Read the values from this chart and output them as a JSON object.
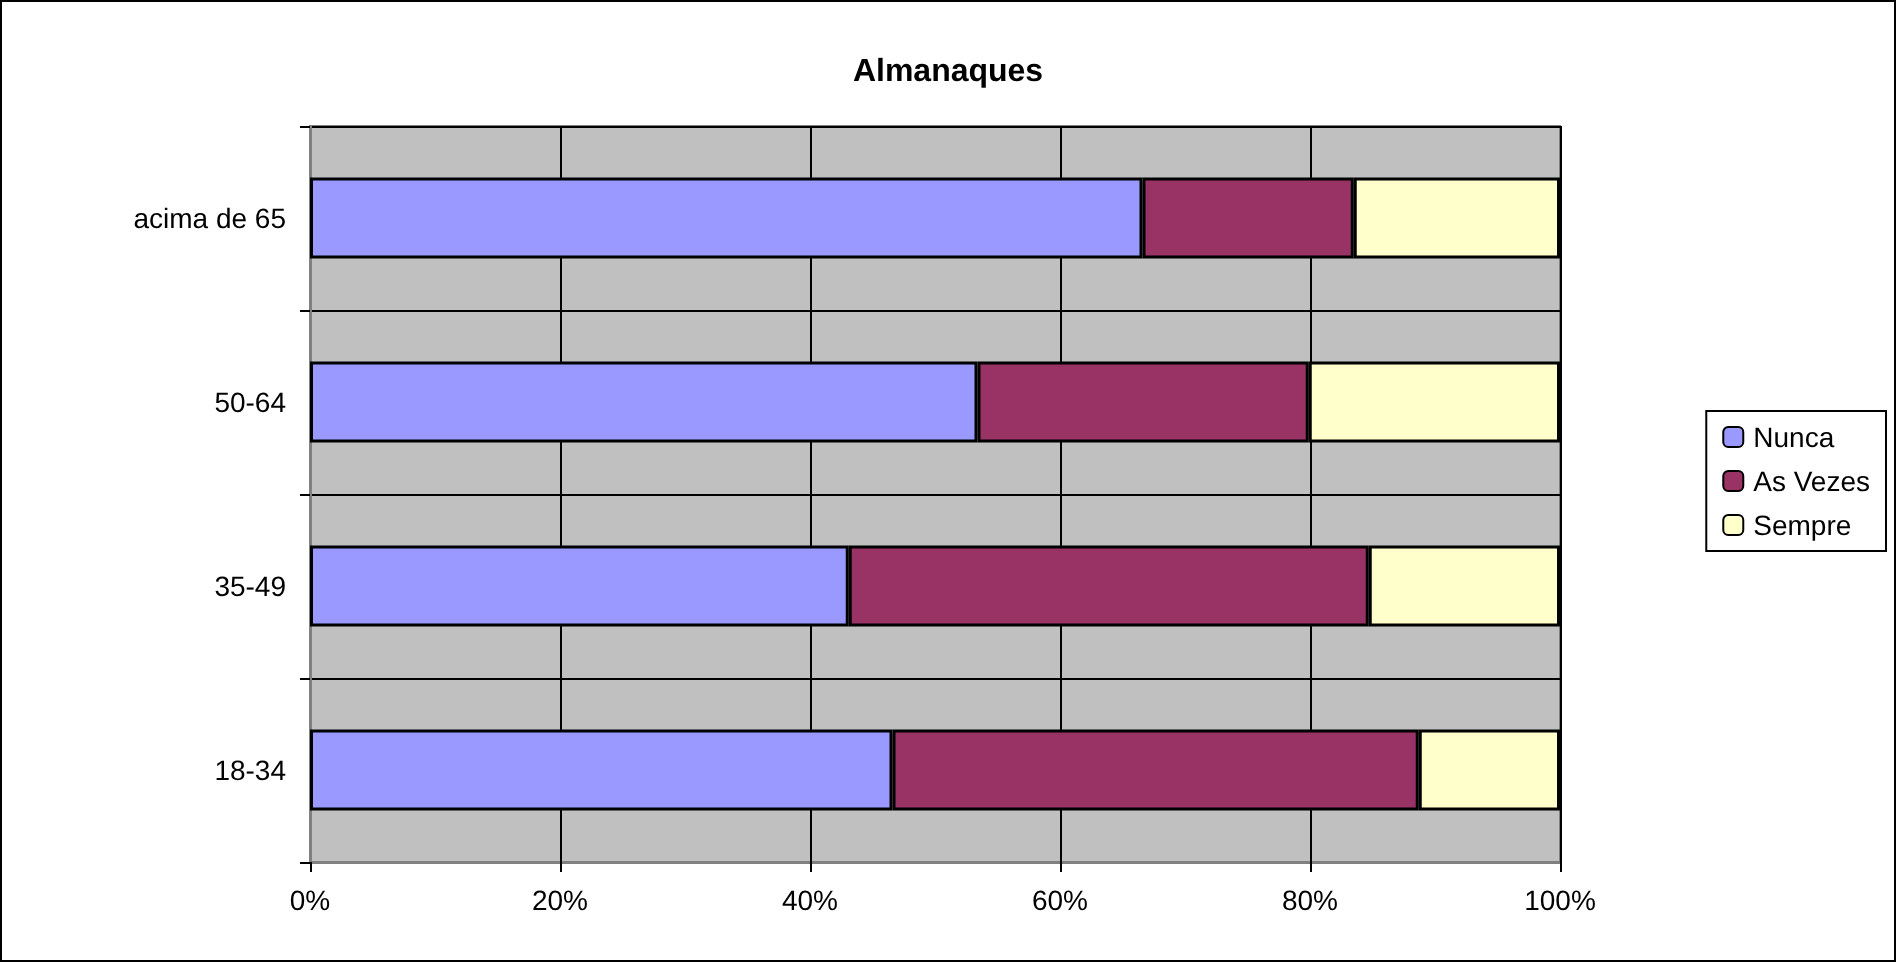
{
  "chart_data": {
    "type": "bar",
    "orientation": "horizontal",
    "stacked": true,
    "title": "Almanaques",
    "categories": [
      "acima de 65",
      "50-64",
      "35-49",
      "18-34"
    ],
    "series": [
      {
        "name": "Nunca",
        "color": "#9999ff",
        "values": [
          66.6,
          53.4,
          43.1,
          46.6
        ]
      },
      {
        "name": "As Vezes",
        "color": "#993366",
        "values": [
          16.9,
          26.5,
          41.6,
          42.1
        ]
      },
      {
        "name": "Sempre",
        "color": "#ffffcc",
        "values": [
          16.5,
          20.1,
          15.3,
          11.3
        ]
      }
    ],
    "xlim": [
      0,
      100
    ],
    "xticks": [
      {
        "value": 0,
        "label": "0%"
      },
      {
        "value": 20,
        "label": "20%"
      },
      {
        "value": 40,
        "label": "40%"
      },
      {
        "value": 60,
        "label": "60%"
      },
      {
        "value": 80,
        "label": "80%"
      },
      {
        "value": 100,
        "label": "100%"
      }
    ],
    "grid": true,
    "legend": "right"
  }
}
